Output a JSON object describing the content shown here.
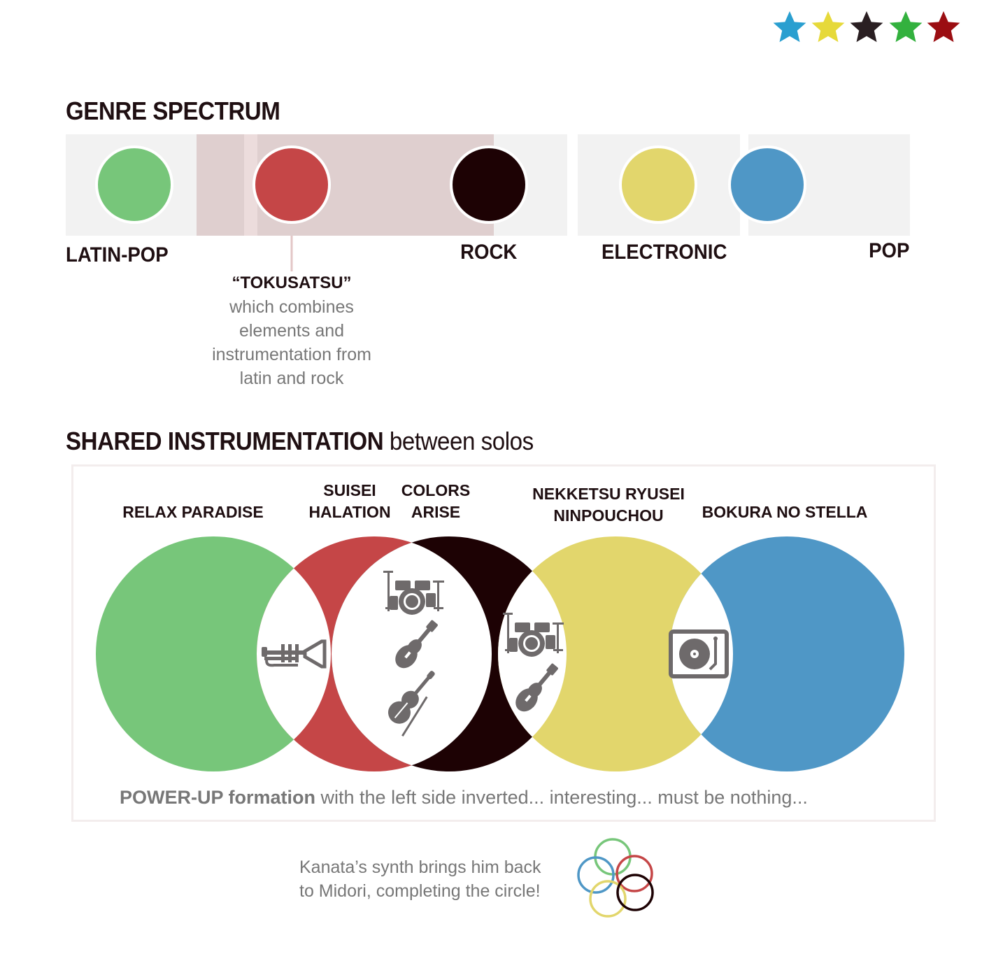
{
  "star_colors": [
    "#2a9fd0",
    "#e6d93a",
    "#2a1f22",
    "#33b13e",
    "#9b0e12"
  ],
  "genre_spectrum": {
    "title": "GENRE SPECTRUM",
    "genres": [
      {
        "label": "LATIN-POP",
        "color": "#77c67a"
      },
      {
        "label": "",
        "color": "#c54647"
      },
      {
        "label": "ROCK",
        "color": "#1d0204"
      },
      {
        "label": "ELECTRONIC",
        "color": "#e2d66c"
      },
      {
        "label": "POP",
        "color": "#4f97c6"
      }
    ],
    "annotation": {
      "title": "“TOKUSATSU”",
      "lines": [
        "which combines",
        "elements and",
        "instrumentation from",
        "latin and rock"
      ]
    }
  },
  "shared_instrumentation": {
    "title_bold": "SHARED INSTRUMENTATION",
    "title_rest": " between solos",
    "songs": [
      {
        "lines": [
          "RELAX PARADISE"
        ],
        "color": "#77c67a"
      },
      {
        "lines": [
          "SUISEI",
          "HALATION"
        ],
        "color": "#c54647"
      },
      {
        "lines": [
          "COLORS",
          "ARISE"
        ],
        "color": "#1d0204"
      },
      {
        "lines": [
          "NEKKETSU RYUSEI",
          "NINPOUCHOU"
        ],
        "color": "#e2d66c"
      },
      {
        "lines": [
          "BOKURA NO STELLA"
        ],
        "color": "#4f97c6"
      }
    ],
    "instrument_icons": [
      "trumpet-icon",
      "drum-kit-icon",
      "electric-guitar-icon",
      "violin-icon",
      "drum-kit-icon",
      "electric-guitar-icon",
      "turntable-icon"
    ],
    "caption_bold": "POWER-UP formation",
    "caption_rest": " with the left side inverted... interesting... must be nothing..."
  },
  "footer": {
    "lines": [
      "Kanata’s synth brings him back",
      "to Midori, completing the circle!"
    ],
    "ring_colors": [
      "#77c67a",
      "#4f97c6",
      "#c54647",
      "#e2d66c",
      "#1d0204"
    ]
  }
}
